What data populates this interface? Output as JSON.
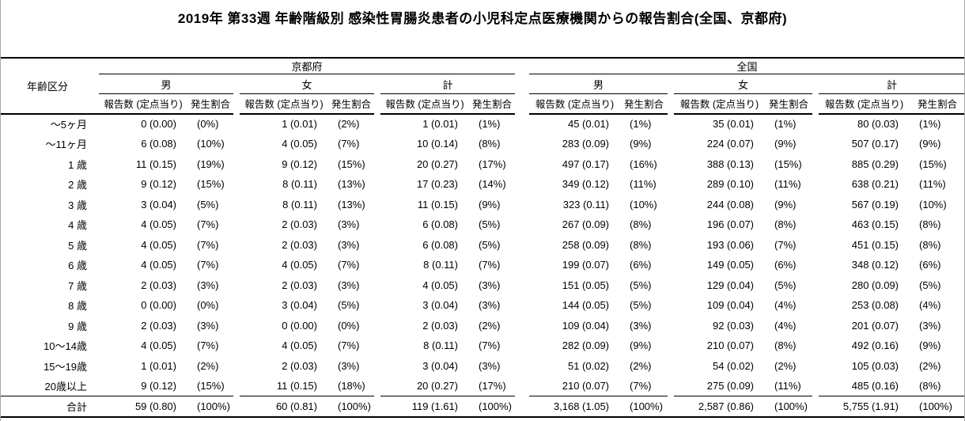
{
  "title": "2019年 第33週 年齢階級別 感染性胃腸炎患者の小児科定点医療機関からの報告割合(全国、京都府)",
  "table": {
    "age_header": "年齢区分",
    "region_headers": [
      "京都府",
      "全国"
    ],
    "sex_headers": [
      "男",
      "女",
      "計"
    ],
    "count_header": "報告数 (定点当り)",
    "pct_header": "発生割合",
    "rows": [
      {
        "age": "～5ヶ月",
        "cells": [
          [
            "0 (0.00)",
            "(0%)"
          ],
          [
            "1 (0.01)",
            "(2%)"
          ],
          [
            "1 (0.01)",
            "(1%)"
          ],
          [
            "45 (0.01)",
            "(1%)"
          ],
          [
            "35 (0.01)",
            "(1%)"
          ],
          [
            "80 (0.03)",
            "(1%)"
          ]
        ]
      },
      {
        "age": "～11ヶ月",
        "cells": [
          [
            "6 (0.08)",
            "(10%)"
          ],
          [
            "4 (0.05)",
            "(7%)"
          ],
          [
            "10 (0.14)",
            "(8%)"
          ],
          [
            "283 (0.09)",
            "(9%)"
          ],
          [
            "224 (0.07)",
            "(9%)"
          ],
          [
            "507 (0.17)",
            "(9%)"
          ]
        ]
      },
      {
        "age": "1 歳",
        "cells": [
          [
            "11 (0.15)",
            "(19%)"
          ],
          [
            "9 (0.12)",
            "(15%)"
          ],
          [
            "20 (0.27)",
            "(17%)"
          ],
          [
            "497 (0.17)",
            "(16%)"
          ],
          [
            "388 (0.13)",
            "(15%)"
          ],
          [
            "885 (0.29)",
            "(15%)"
          ]
        ]
      },
      {
        "age": "2 歳",
        "cells": [
          [
            "9 (0.12)",
            "(15%)"
          ],
          [
            "8 (0.11)",
            "(13%)"
          ],
          [
            "17 (0.23)",
            "(14%)"
          ],
          [
            "349 (0.12)",
            "(11%)"
          ],
          [
            "289 (0.10)",
            "(11%)"
          ],
          [
            "638 (0.21)",
            "(11%)"
          ]
        ]
      },
      {
        "age": "3 歳",
        "cells": [
          [
            "3 (0.04)",
            "(5%)"
          ],
          [
            "8 (0.11)",
            "(13%)"
          ],
          [
            "11 (0.15)",
            "(9%)"
          ],
          [
            "323 (0.11)",
            "(10%)"
          ],
          [
            "244 (0.08)",
            "(9%)"
          ],
          [
            "567 (0.19)",
            "(10%)"
          ]
        ]
      },
      {
        "age": "4 歳",
        "cells": [
          [
            "4 (0.05)",
            "(7%)"
          ],
          [
            "2 (0.03)",
            "(3%)"
          ],
          [
            "6 (0.08)",
            "(5%)"
          ],
          [
            "267 (0.09)",
            "(8%)"
          ],
          [
            "196 (0.07)",
            "(8%)"
          ],
          [
            "463 (0.15)",
            "(8%)"
          ]
        ]
      },
      {
        "age": "5 歳",
        "cells": [
          [
            "4 (0.05)",
            "(7%)"
          ],
          [
            "2 (0.03)",
            "(3%)"
          ],
          [
            "6 (0.08)",
            "(5%)"
          ],
          [
            "258 (0.09)",
            "(8%)"
          ],
          [
            "193 (0.06)",
            "(7%)"
          ],
          [
            "451 (0.15)",
            "(8%)"
          ]
        ]
      },
      {
        "age": "6 歳",
        "cells": [
          [
            "4 (0.05)",
            "(7%)"
          ],
          [
            "4 (0.05)",
            "(7%)"
          ],
          [
            "8 (0.11)",
            "(7%)"
          ],
          [
            "199 (0.07)",
            "(6%)"
          ],
          [
            "149 (0.05)",
            "(6%)"
          ],
          [
            "348 (0.12)",
            "(6%)"
          ]
        ]
      },
      {
        "age": "7 歳",
        "cells": [
          [
            "2 (0.03)",
            "(3%)"
          ],
          [
            "2 (0.03)",
            "(3%)"
          ],
          [
            "4 (0.05)",
            "(3%)"
          ],
          [
            "151 (0.05)",
            "(5%)"
          ],
          [
            "129 (0.04)",
            "(5%)"
          ],
          [
            "280 (0.09)",
            "(5%)"
          ]
        ]
      },
      {
        "age": "8 歳",
        "cells": [
          [
            "0 (0.00)",
            "(0%)"
          ],
          [
            "3 (0.04)",
            "(5%)"
          ],
          [
            "3 (0.04)",
            "(3%)"
          ],
          [
            "144 (0.05)",
            "(5%)"
          ],
          [
            "109 (0.04)",
            "(4%)"
          ],
          [
            "253 (0.08)",
            "(4%)"
          ]
        ]
      },
      {
        "age": "9 歳",
        "cells": [
          [
            "2 (0.03)",
            "(3%)"
          ],
          [
            "0 (0.00)",
            "(0%)"
          ],
          [
            "2 (0.03)",
            "(2%)"
          ],
          [
            "109 (0.04)",
            "(3%)"
          ],
          [
            "92 (0.03)",
            "(4%)"
          ],
          [
            "201 (0.07)",
            "(3%)"
          ]
        ]
      },
      {
        "age": "10～14歳",
        "cells": [
          [
            "4 (0.05)",
            "(7%)"
          ],
          [
            "4 (0.05)",
            "(7%)"
          ],
          [
            "8 (0.11)",
            "(7%)"
          ],
          [
            "282 (0.09)",
            "(9%)"
          ],
          [
            "210 (0.07)",
            "(8%)"
          ],
          [
            "492 (0.16)",
            "(9%)"
          ]
        ]
      },
      {
        "age": "15～19歳",
        "cells": [
          [
            "1 (0.01)",
            "(2%)"
          ],
          [
            "2 (0.03)",
            "(3%)"
          ],
          [
            "3 (0.04)",
            "(3%)"
          ],
          [
            "51 (0.02)",
            "(2%)"
          ],
          [
            "54 (0.02)",
            "(2%)"
          ],
          [
            "105 (0.03)",
            "(2%)"
          ]
        ]
      },
      {
        "age": "20歳以上",
        "cells": [
          [
            "9 (0.12)",
            "(15%)"
          ],
          [
            "11 (0.15)",
            "(18%)"
          ],
          [
            "20 (0.27)",
            "(17%)"
          ],
          [
            "210 (0.07)",
            "(7%)"
          ],
          [
            "275 (0.09)",
            "(11%)"
          ],
          [
            "485 (0.16)",
            "(8%)"
          ]
        ]
      }
    ],
    "total_row": {
      "age": "合計",
      "cells": [
        [
          "59 (0.80)",
          "(100%)"
        ],
        [
          "60 (0.81)",
          "(100%)"
        ],
        [
          "119 (1.61)",
          "(100%)"
        ],
        [
          "3,168 (1.05)",
          "(100%)"
        ],
        [
          "2,587 (0.86)",
          "(100%)"
        ],
        [
          "5,755 (1.91)",
          "(100%)"
        ]
      ]
    }
  }
}
